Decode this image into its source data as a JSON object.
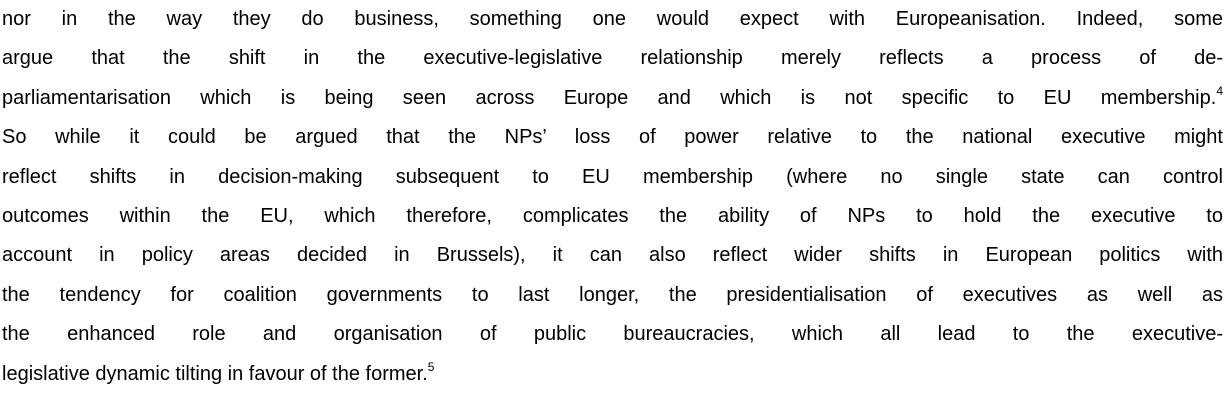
{
  "paragraph": {
    "lines": [
      {
        "text": "nor in the way they do business, something one would expect with Europeanisation. Indeed, some"
      },
      {
        "text": "argue that the shift in the executive-legislative relationship merely reflects a process of de-"
      },
      {
        "text": "parliamentarisation which is being seen across Europe and which is not specific to EU membership.",
        "note": "4"
      },
      {
        "text": "So while it could be argued that the NPs’ loss of power relative to the national executive might"
      },
      {
        "text": "reflect shifts in decision-making subsequent to EU membership (where no single state can control"
      },
      {
        "text": "outcomes within the EU, which therefore, complicates the ability of NPs to hold the executive to"
      },
      {
        "text": "account in policy areas decided in Brussels), it can also reflect wider shifts in European politics with"
      },
      {
        "text": "the tendency for coalition governments to last longer, the presidentialisation of executives as well as"
      },
      {
        "text": "the enhanced role and organisation of public bureaucracies, which all lead to the executive-"
      },
      {
        "text": "legislative dynamic tilting in favour of the former.",
        "note": "5"
      }
    ]
  }
}
